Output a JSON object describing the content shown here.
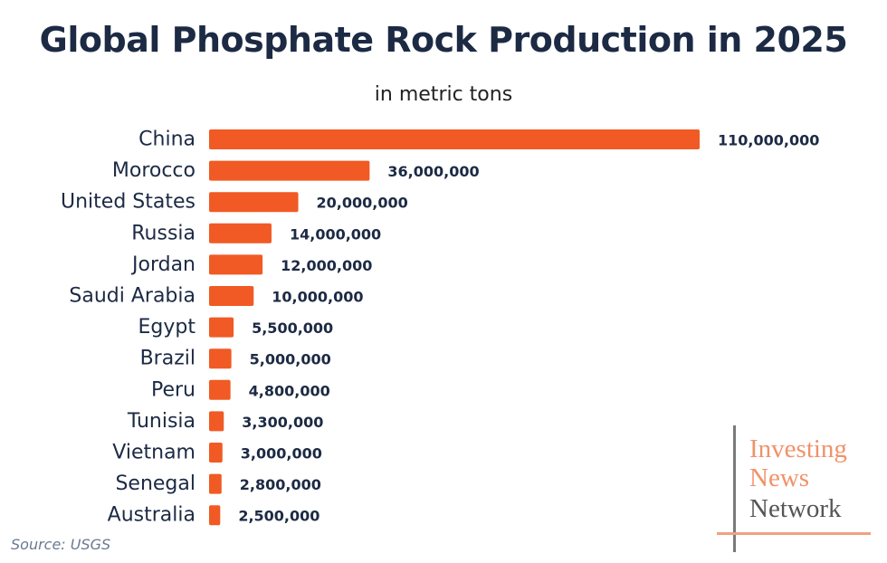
{
  "chart_data": {
    "type": "bar",
    "orientation": "horizontal",
    "title": "Global Phosphate Rock Production in 2025",
    "subtitle": "in metric tons",
    "categories": [
      "China",
      "Morocco",
      "United States",
      "Russia",
      "Jordan",
      "Saudi Arabia",
      "Egypt",
      "Brazil",
      "Peru",
      "Tunisia",
      "Vietnam",
      "Senegal",
      "Australia"
    ],
    "values": [
      110000000,
      36000000,
      20000000,
      14000000,
      12000000,
      10000000,
      5500000,
      5000000,
      4800000,
      3300000,
      3000000,
      2800000,
      2500000
    ],
    "value_labels": [
      "110,000,000",
      "36,000,000",
      "20,000,000",
      "14,000,000",
      "12,000,000",
      "10,000,000",
      "5,500,000",
      "5,000,000",
      "4,800,000",
      "3,300,000",
      "3,000,000",
      "2,800,000",
      "2,500,000"
    ],
    "xlim": [
      0,
      110000000
    ],
    "grid": false,
    "bar_color": "#f15a24"
  },
  "source": "Source: USGS",
  "logo": {
    "line1": "Investing",
    "line2": "News",
    "line3": "Network"
  },
  "colors": {
    "title": "#1c2a44",
    "bar": "#f15a24",
    "logo_accent": "#f0926a"
  }
}
